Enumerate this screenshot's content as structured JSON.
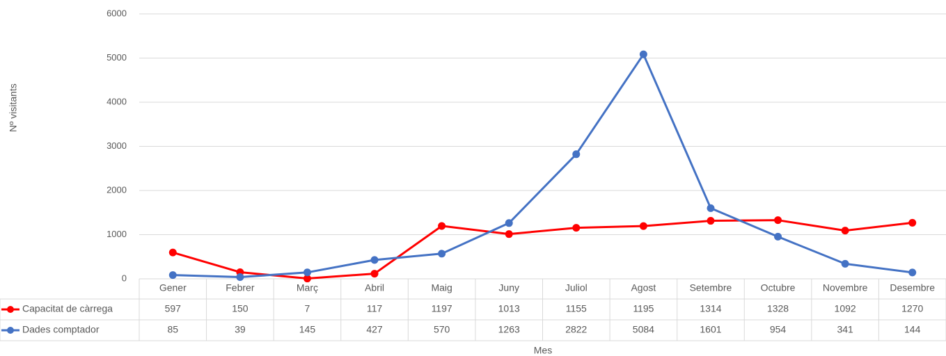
{
  "chart_data": {
    "type": "line",
    "x_label": "Mes",
    "y_label": "Nº visitants",
    "categories": [
      "Gener",
      "Febrer",
      "Març",
      "Abril",
      "Maig",
      "Juny",
      "Juliol",
      "Agost",
      "Setembre",
      "Octubre",
      "Novembre",
      "Desembre"
    ],
    "series": [
      {
        "name": "Capacitat de càrrega",
        "color": "#ff0000",
        "values": [
          597,
          150,
          7,
          117,
          1197,
          1013,
          1155,
          1195,
          1314,
          1328,
          1092,
          1270
        ]
      },
      {
        "name": "Dades comptador",
        "color": "#4472c4",
        "values": [
          85,
          39,
          145,
          427,
          570,
          1263,
          2822,
          5084,
          1601,
          954,
          341,
          144
        ]
      }
    ],
    "ylim": [
      0,
      6000
    ],
    "yticks": [
      0,
      1000,
      2000,
      3000,
      4000,
      5000,
      6000
    ],
    "grid": true
  }
}
